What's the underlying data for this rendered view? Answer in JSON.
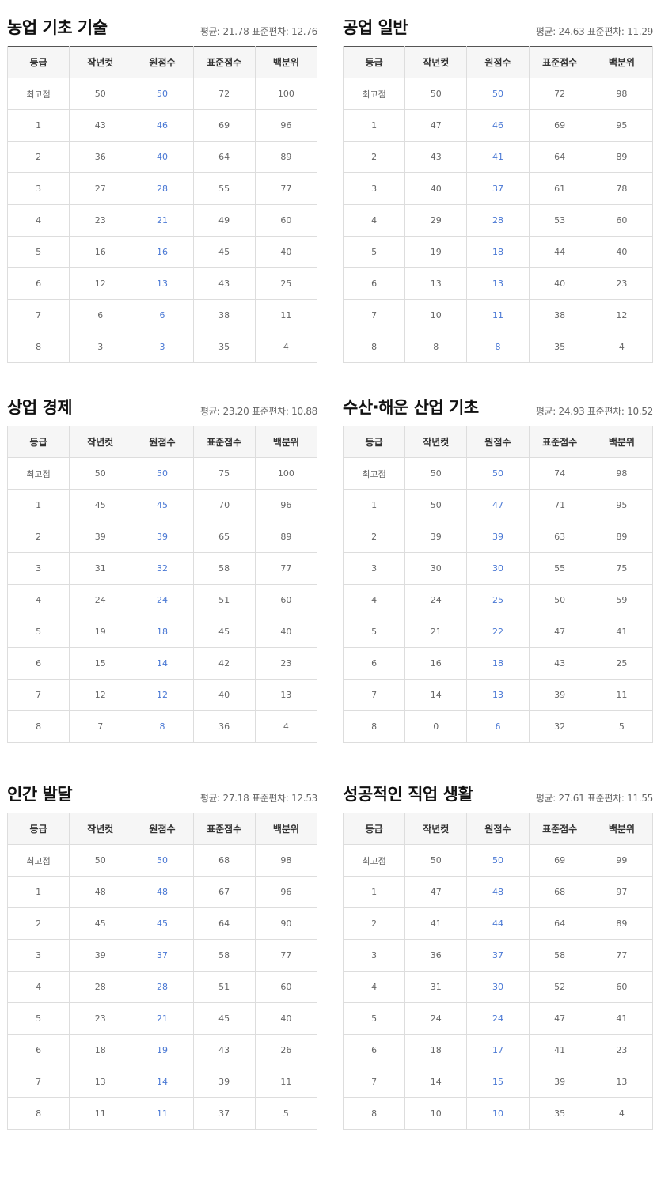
{
  "columns": [
    "등급",
    "작년컷",
    "원점수",
    "표준점수",
    "백분위"
  ],
  "colors": {
    "raw_score": "#4a78d4",
    "text": "#666666",
    "header_bg": "#f6f6f6",
    "border": "#dddddd"
  },
  "panels": [
    {
      "title": "농업 기초 기술",
      "stats": "평균: 21.78 표준편차: 12.76",
      "rows": [
        [
          "최고점",
          "50",
          "50",
          "72",
          "100"
        ],
        [
          "1",
          "43",
          "46",
          "69",
          "96"
        ],
        [
          "2",
          "36",
          "40",
          "64",
          "89"
        ],
        [
          "3",
          "27",
          "28",
          "55",
          "77"
        ],
        [
          "4",
          "23",
          "21",
          "49",
          "60"
        ],
        [
          "5",
          "16",
          "16",
          "45",
          "40"
        ],
        [
          "6",
          "12",
          "13",
          "43",
          "25"
        ],
        [
          "7",
          "6",
          "6",
          "38",
          "11"
        ],
        [
          "8",
          "3",
          "3",
          "35",
          "4"
        ]
      ]
    },
    {
      "title": "공업 일반",
      "stats": "평균: 24.63 표준편차: 11.29",
      "rows": [
        [
          "최고점",
          "50",
          "50",
          "72",
          "98"
        ],
        [
          "1",
          "47",
          "46",
          "69",
          "95"
        ],
        [
          "2",
          "43",
          "41",
          "64",
          "89"
        ],
        [
          "3",
          "40",
          "37",
          "61",
          "78"
        ],
        [
          "4",
          "29",
          "28",
          "53",
          "60"
        ],
        [
          "5",
          "19",
          "18",
          "44",
          "40"
        ],
        [
          "6",
          "13",
          "13",
          "40",
          "23"
        ],
        [
          "7",
          "10",
          "11",
          "38",
          "12"
        ],
        [
          "8",
          "8",
          "8",
          "35",
          "4"
        ]
      ]
    },
    {
      "title": "상업 경제",
      "stats": "평균: 23.20 표준편차: 10.88",
      "rows": [
        [
          "최고점",
          "50",
          "50",
          "75",
          "100"
        ],
        [
          "1",
          "45",
          "45",
          "70",
          "96"
        ],
        [
          "2",
          "39",
          "39",
          "65",
          "89"
        ],
        [
          "3",
          "31",
          "32",
          "58",
          "77"
        ],
        [
          "4",
          "24",
          "24",
          "51",
          "60"
        ],
        [
          "5",
          "19",
          "18",
          "45",
          "40"
        ],
        [
          "6",
          "15",
          "14",
          "42",
          "23"
        ],
        [
          "7",
          "12",
          "12",
          "40",
          "13"
        ],
        [
          "8",
          "7",
          "8",
          "36",
          "4"
        ]
      ]
    },
    {
      "title": "수산·해운 산업 기초",
      "stats": "평균: 24.93 표준편차: 10.52",
      "rows": [
        [
          "최고점",
          "50",
          "50",
          "74",
          "98"
        ],
        [
          "1",
          "50",
          "47",
          "71",
          "95"
        ],
        [
          "2",
          "39",
          "39",
          "63",
          "89"
        ],
        [
          "3",
          "30",
          "30",
          "55",
          "75"
        ],
        [
          "4",
          "24",
          "25",
          "50",
          "59"
        ],
        [
          "5",
          "21",
          "22",
          "47",
          "41"
        ],
        [
          "6",
          "16",
          "18",
          "43",
          "25"
        ],
        [
          "7",
          "14",
          "13",
          "39",
          "11"
        ],
        [
          "8",
          "0",
          "6",
          "32",
          "5"
        ]
      ]
    },
    {
      "title": "인간 발달",
      "stats": "평균: 27.18 표준편차: 12.53",
      "rows": [
        [
          "최고점",
          "50",
          "50",
          "68",
          "98"
        ],
        [
          "1",
          "48",
          "48",
          "67",
          "96"
        ],
        [
          "2",
          "45",
          "45",
          "64",
          "90"
        ],
        [
          "3",
          "39",
          "37",
          "58",
          "77"
        ],
        [
          "4",
          "28",
          "28",
          "51",
          "60"
        ],
        [
          "5",
          "23",
          "21",
          "45",
          "40"
        ],
        [
          "6",
          "18",
          "19",
          "43",
          "26"
        ],
        [
          "7",
          "13",
          "14",
          "39",
          "11"
        ],
        [
          "8",
          "11",
          "11",
          "37",
          "5"
        ]
      ]
    },
    {
      "title": "성공적인 직업 생활",
      "stats": "평균: 27.61 표준편차: 11.55",
      "rows": [
        [
          "최고점",
          "50",
          "50",
          "69",
          "99"
        ],
        [
          "1",
          "47",
          "48",
          "68",
          "97"
        ],
        [
          "2",
          "41",
          "44",
          "64",
          "89"
        ],
        [
          "3",
          "36",
          "37",
          "58",
          "77"
        ],
        [
          "4",
          "31",
          "30",
          "52",
          "60"
        ],
        [
          "5",
          "24",
          "24",
          "47",
          "41"
        ],
        [
          "6",
          "18",
          "17",
          "41",
          "23"
        ],
        [
          "7",
          "14",
          "15",
          "39",
          "13"
        ],
        [
          "8",
          "10",
          "10",
          "35",
          "4"
        ]
      ]
    }
  ]
}
